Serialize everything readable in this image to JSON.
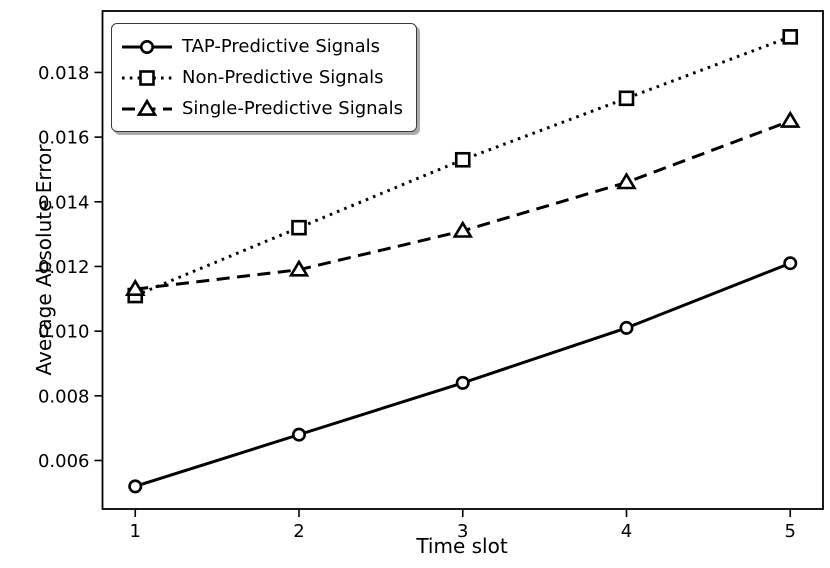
{
  "figure": {
    "background": "#ffffff",
    "foreground": "#000000",
    "legend_shadow_color": "#ababab"
  },
  "chart_data": {
    "type": "line",
    "title": "",
    "xlabel": "Time slot",
    "ylabel": "Average Absolute Error",
    "x": [
      1,
      2,
      3,
      4,
      5
    ],
    "series": [
      {
        "name": "TAP-Predictive Signals",
        "marker": "circle",
        "linestyle": "solid",
        "color": "#000000",
        "values": [
          0.0052,
          0.0068,
          0.0084,
          0.0101,
          0.0121
        ]
      },
      {
        "name": "Non-Predictive Signals",
        "marker": "square",
        "linestyle": "dotted",
        "color": "#000000",
        "values": [
          0.0111,
          0.0132,
          0.0153,
          0.0172,
          0.0191
        ]
      },
      {
        "name": "Single-Predictive Signals",
        "marker": "triangle",
        "linestyle": "dashed",
        "color": "#000000",
        "values": [
          0.0113,
          0.0119,
          0.0131,
          0.0146,
          0.0165
        ]
      }
    ],
    "xlim": [
      0.8,
      5.2
    ],
    "ylim": [
      0.0045,
      0.0199
    ],
    "xticks": [
      1,
      2,
      3,
      4,
      5
    ],
    "yticks": [
      0.006,
      0.008,
      0.01,
      0.012,
      0.014,
      0.016,
      0.018
    ],
    "ytick_decimals": 3,
    "grid": false,
    "legend_position": "upper left"
  }
}
